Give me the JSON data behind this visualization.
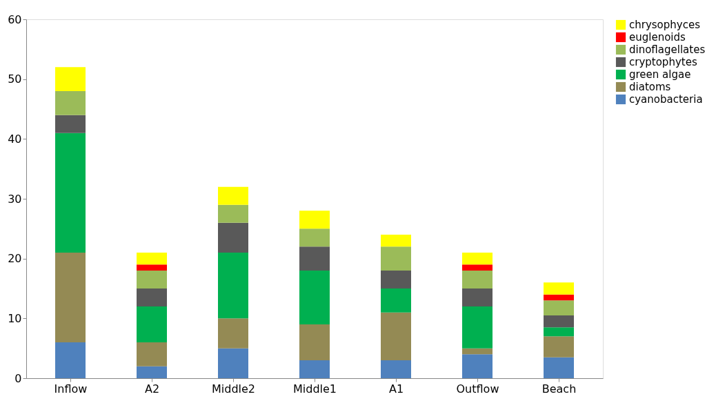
{
  "chart_data": {
    "type": "bar",
    "stacked": true,
    "categories": [
      "Inflow",
      "A2",
      "Middle2",
      "Middle1",
      "A1",
      "Outflow",
      "Beach"
    ],
    "series": [
      {
        "name": "cyanobacteria",
        "color": "#4f81bd",
        "values": [
          6,
          2,
          5,
          3,
          3,
          4,
          3.5
        ]
      },
      {
        "name": "diatoms",
        "color": "#948a54",
        "values": [
          15,
          4,
          5,
          6,
          8,
          1,
          3.5
        ]
      },
      {
        "name": "green algae",
        "color": "#00b050",
        "values": [
          20,
          6,
          11,
          9,
          4,
          7,
          1.5
        ]
      },
      {
        "name": "cryptophytes",
        "color": "#595959",
        "values": [
          3,
          3,
          5,
          4,
          3,
          3,
          2
        ]
      },
      {
        "name": "dinoflagellates",
        "color": "#9bbb59",
        "values": [
          4,
          3,
          3,
          3,
          4,
          3,
          2.5
        ]
      },
      {
        "name": "euglenoids",
        "color": "#ff0000",
        "values": [
          0,
          1,
          0,
          0,
          0,
          1,
          1
        ]
      },
      {
        "name": "chrysophyces",
        "color": "#ffff00",
        "values": [
          4,
          2,
          3,
          3,
          2,
          2,
          2
        ]
      }
    ],
    "ylim": [
      0,
      60
    ],
    "yticks": [
      0,
      10,
      20,
      30,
      40,
      50,
      60
    ],
    "grid": false,
    "legend": "right"
  }
}
